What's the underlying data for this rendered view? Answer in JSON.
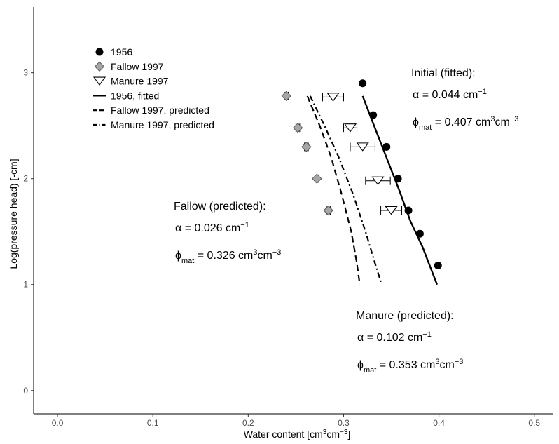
{
  "chart_data": {
    "type": "scatter",
    "title": "",
    "xlabel": {
      "base": "Water content [cm",
      "sup1": "3",
      "mid": "cm",
      "sup2": "−3",
      "end": "]"
    },
    "ylabel": "Log(pressure head) [-cm]",
    "xlim": [
      -0.025,
      0.52
    ],
    "ylim": [
      -0.22,
      3.62
    ],
    "xticks": [
      0.0,
      0.1,
      0.2,
      0.3,
      0.4,
      0.5
    ],
    "xtick_labels": [
      "0.0",
      "0.1",
      "0.2",
      "0.3",
      "0.4",
      "0.5"
    ],
    "yticks": [
      0,
      1,
      2,
      3
    ],
    "ytick_labels": [
      "0",
      "1",
      "2",
      "3"
    ],
    "grid": false,
    "legend_position": "top-left",
    "legend": [
      {
        "label": "1956",
        "kind": "point-circle"
      },
      {
        "label": "Fallow 1997",
        "kind": "point-diamond"
      },
      {
        "label": "Manure 1997",
        "kind": "point-triangle"
      },
      {
        "label": "1956, fitted",
        "kind": "line-solid"
      },
      {
        "label": "Fallow 1997, predicted",
        "kind": "line-dashed"
      },
      {
        "label": "Manure 1997, predicted",
        "kind": "line-dotdash"
      }
    ],
    "points": [
      {
        "name": "1956",
        "marker": "circle",
        "fill": "#000000",
        "data": [
          {
            "x": 0.32,
            "y": 2.9
          },
          {
            "x": 0.331,
            "y": 2.6
          },
          {
            "x": 0.345,
            "y": 2.3
          },
          {
            "x": 0.357,
            "y": 2.0
          },
          {
            "x": 0.368,
            "y": 1.7
          },
          {
            "x": 0.38,
            "y": 1.48
          },
          {
            "x": 0.399,
            "y": 1.18
          }
        ]
      },
      {
        "name": "Fallow 1997",
        "marker": "diamond",
        "fill": "#a6a6a6",
        "data": [
          {
            "x": 0.24,
            "y": 2.78,
            "err": 0.002
          },
          {
            "x": 0.252,
            "y": 2.48,
            "err": 0.002
          },
          {
            "x": 0.261,
            "y": 2.3,
            "err": 0.002
          },
          {
            "x": 0.272,
            "y": 2.0,
            "err": 0.002
          },
          {
            "x": 0.284,
            "y": 1.7,
            "err": 0.002
          }
        ]
      },
      {
        "name": "Manure 1997",
        "marker": "triangle-down",
        "fill": "#ffffff",
        "data": [
          {
            "x": 0.289,
            "y": 2.77,
            "err": 0.011
          },
          {
            "x": 0.307,
            "y": 2.48,
            "err": 0.007
          },
          {
            "x": 0.32,
            "y": 2.3,
            "err": 0.013
          },
          {
            "x": 0.336,
            "y": 1.98,
            "err": 0.013
          },
          {
            "x": 0.35,
            "y": 1.7,
            "err": 0.011
          }
        ]
      }
    ],
    "lines": [
      {
        "name": "1956, fitted",
        "style": "solid",
        "data": [
          [
            0.32,
            2.78
          ],
          [
            0.332,
            2.5
          ],
          [
            0.345,
            2.2
          ],
          [
            0.358,
            1.9
          ],
          [
            0.37,
            1.6
          ],
          [
            0.383,
            1.35
          ],
          [
            0.398,
            1.0
          ]
        ]
      },
      {
        "name": "Fallow 1997, predicted",
        "style": "dashed",
        "data": [
          [
            0.262,
            2.78
          ],
          [
            0.275,
            2.5
          ],
          [
            0.287,
            2.2
          ],
          [
            0.298,
            1.85
          ],
          [
            0.308,
            1.5
          ],
          [
            0.314,
            1.2
          ],
          [
            0.317,
            1.0
          ]
        ]
      },
      {
        "name": "Manure 1997, predicted",
        "style": "dotdash",
        "data": [
          [
            0.265,
            2.78
          ],
          [
            0.28,
            2.5
          ],
          [
            0.295,
            2.2
          ],
          [
            0.31,
            1.85
          ],
          [
            0.323,
            1.5
          ],
          [
            0.333,
            1.2
          ],
          [
            0.34,
            1.0
          ]
        ]
      }
    ],
    "annotations": [
      {
        "key": "initial",
        "title": "Initial (fitted):",
        "alpha": {
          "prefix": "α = ",
          "value": "0.044 cm",
          "sup": "−1"
        },
        "phi": {
          "sym": "ϕ",
          "sub": "mat",
          "value": " = 0.407 cm",
          "sup1": "3",
          "mid": "cm",
          "sup2": "−3"
        }
      },
      {
        "key": "fallow",
        "title": "Fallow (predicted):",
        "alpha": {
          "prefix": "α = ",
          "value": "0.026 cm",
          "sup": "−1"
        },
        "phi": {
          "sym": "ϕ",
          "sub": "mat",
          "value": " = 0.326 cm",
          "sup1": "3",
          "mid": "cm",
          "sup2": "−3"
        }
      },
      {
        "key": "manure",
        "title": "Manure (predicted):",
        "alpha": {
          "prefix": "α = ",
          "value": "0.102 cm",
          "sup": "−1"
        },
        "phi": {
          "sym": "ϕ",
          "sub": "mat",
          "value": " = 0.353 cm",
          "sup1": "3",
          "mid": "cm",
          "sup2": "−3"
        }
      }
    ]
  }
}
